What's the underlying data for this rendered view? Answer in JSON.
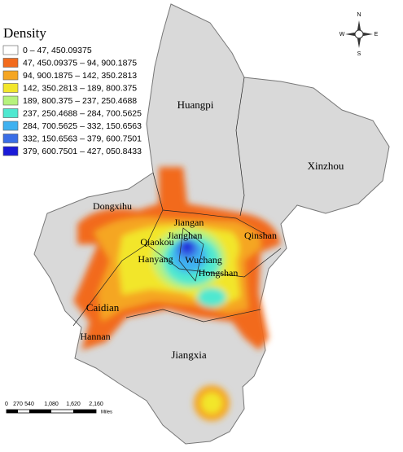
{
  "legend": {
    "title": "Density",
    "items": [
      {
        "label": "0 – 47, 450.09375",
        "color": "#ffffff"
      },
      {
        "label": "47, 450.09375 – 94, 900.1875",
        "color": "#f26b1d"
      },
      {
        "label": "94, 900.1875 – 142, 350.2813",
        "color": "#f5a623"
      },
      {
        "label": "142, 350.2813 – 189, 800.375",
        "color": "#f2e62c"
      },
      {
        "label": "189, 800.375 – 237, 250.4688",
        "color": "#b6f27c"
      },
      {
        "label": "237, 250.4688 – 284, 700.5625",
        "color": "#4fe8d0"
      },
      {
        "label": "284, 700.5625 – 332, 150.6563",
        "color": "#3fb1f0"
      },
      {
        "label": "332, 150.6563 – 379, 600.7501",
        "color": "#3a6ee6"
      },
      {
        "label": "379, 600.7501 – 427, 050.8433",
        "color": "#1a1ad8"
      }
    ]
  },
  "districts": [
    "Huangpi",
    "Xinzhou",
    "Dongxihu",
    "Jiangan",
    "Jianghan",
    "Qiaokou",
    "Qinshan",
    "Hanyang",
    "Wuchang",
    "Hongshan",
    "Caidian",
    "Hannan",
    "Jiangxia"
  ],
  "compass": {
    "north": "N",
    "south": "S",
    "east": "E",
    "west": "W"
  },
  "scale_bar": {
    "labels": [
      "0",
      "270",
      "540",
      "1,080",
      "1,620",
      "2,160"
    ],
    "unit": "Miles"
  }
}
